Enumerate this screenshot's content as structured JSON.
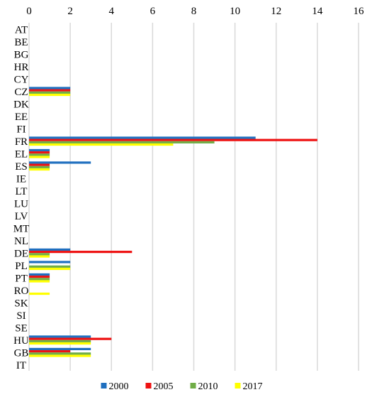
{
  "chart_data": {
    "type": "bar",
    "orientation": "horizontal",
    "title": "",
    "xlabel": "",
    "ylabel": "",
    "xlim": [
      0,
      16
    ],
    "x_ticks": [
      0,
      2,
      4,
      6,
      8,
      10,
      12,
      14,
      16
    ],
    "x_axis_position": "top",
    "grid": "vertical",
    "legend_position": "bottom",
    "categories": [
      "AT",
      "BE",
      "BG",
      "HR",
      "CY",
      "CZ",
      "DK",
      "EE",
      "FI",
      "FR",
      "EL",
      "ES",
      "IE",
      "LT",
      "LU",
      "LV",
      "MT",
      "NL",
      "DE",
      "PL",
      "PT",
      "RO",
      "SK",
      "SI",
      "SE",
      "HU",
      "GB",
      "IT"
    ],
    "series": [
      {
        "name": "2000",
        "color": "#1f6fbf",
        "values": [
          0,
          0,
          0,
          0,
          0,
          2,
          0,
          0,
          0,
          11,
          1,
          3,
          0,
          0,
          0,
          0,
          0,
          0,
          2,
          2,
          1,
          0,
          0,
          0,
          0,
          3,
          3,
          0
        ]
      },
      {
        "name": "2005",
        "color": "#ee1111",
        "values": [
          0,
          0,
          0,
          0,
          0,
          2,
          0,
          0,
          0,
          14,
          1,
          1,
          0,
          0,
          0,
          0,
          0,
          0,
          5,
          0,
          1,
          0,
          0,
          0,
          0,
          4,
          2,
          0
        ]
      },
      {
        "name": "2010",
        "color": "#70ad47",
        "values": [
          0,
          0,
          0,
          0,
          0,
          2,
          0,
          0,
          0,
          9,
          1,
          1,
          0,
          0,
          0,
          0,
          0,
          0,
          1,
          2,
          1,
          0,
          0,
          0,
          0,
          3,
          3,
          0
        ]
      },
      {
        "name": "2017",
        "color": "#ffff00",
        "values": [
          0,
          0,
          0,
          0,
          0,
          2,
          0,
          0,
          0,
          7,
          1,
          1,
          0,
          0,
          0,
          0,
          0,
          0,
          1,
          2,
          1,
          1,
          0,
          0,
          0,
          3,
          3,
          0
        ]
      }
    ]
  }
}
